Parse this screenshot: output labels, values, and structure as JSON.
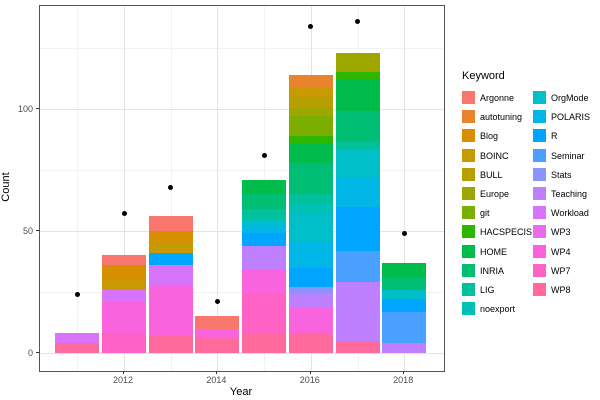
{
  "chart_data": {
    "type": "bar",
    "stacked": true,
    "xlabel": "Year",
    "ylabel": "Count",
    "legend_title": "Keyword",
    "x_ticks": [
      2012,
      2014,
      2016,
      2018
    ],
    "y_ticks": [
      0,
      50,
      100
    ],
    "y_minor_ticks": [
      25,
      75,
      125
    ],
    "x_minor_years": [
      2011,
      2013,
      2015,
      2017
    ],
    "ylim": [
      -7.4,
      142.2
    ],
    "xlim": [
      2010.2,
      2018.9
    ],
    "grid": true,
    "legend_position": "right",
    "keywords": [
      {
        "name": "Argonne",
        "color": "#F8766D"
      },
      {
        "name": "autotuning",
        "color": "#E8842E"
      },
      {
        "name": "Blog",
        "color": "#D78E00"
      },
      {
        "name": "BOINC",
        "color": "#C89900"
      },
      {
        "name": "BULL",
        "color": "#B5A000"
      },
      {
        "name": "Europe",
        "color": "#9DA700"
      },
      {
        "name": "git",
        "color": "#7CAE00"
      },
      {
        "name": "HACSPECIS",
        "color": "#2CB600"
      },
      {
        "name": "HOME",
        "color": "#00BC4B"
      },
      {
        "name": "INRIA",
        "color": "#00BF74"
      },
      {
        "name": "LIG",
        "color": "#00C19C"
      },
      {
        "name": "noexport",
        "color": "#00C1B3"
      },
      {
        "name": "OrgMode",
        "color": "#00BFC8"
      },
      {
        "name": "POLARIS",
        "color": "#00B7E8"
      },
      {
        "name": "R",
        "color": "#00A5FF"
      },
      {
        "name": "Seminar",
        "color": "#4AA0FF"
      },
      {
        "name": "Stats",
        "color": "#8B93FF"
      },
      {
        "name": "Teaching",
        "color": "#BF80FF"
      },
      {
        "name": "Workload",
        "color": "#D874FB"
      },
      {
        "name": "WP3",
        "color": "#E96BF0"
      },
      {
        "name": "WP4",
        "color": "#F963DE"
      },
      {
        "name": "WP7",
        "color": "#FF61C5"
      },
      {
        "name": "WP8",
        "color": "#FF699C"
      }
    ],
    "bars": [
      {
        "year": 2011,
        "total": 8,
        "segments": [
          {
            "keyword": "WP8",
            "value": 4
          },
          {
            "keyword": "Workload",
            "value": 4
          }
        ]
      },
      {
        "year": 2012,
        "total": 40,
        "segments": [
          {
            "keyword": "WP7",
            "value": 8
          },
          {
            "keyword": "WP4",
            "value": 13
          },
          {
            "keyword": "Workload",
            "value": 5
          },
          {
            "keyword": "BOINC",
            "value": 4
          },
          {
            "keyword": "Blog",
            "value": 6
          },
          {
            "keyword": "Argonne",
            "value": 4
          }
        ]
      },
      {
        "year": 2013,
        "total": 56,
        "segments": [
          {
            "keyword": "WP8",
            "value": 7
          },
          {
            "keyword": "WP4",
            "value": 21
          },
          {
            "keyword": "Workload",
            "value": 8
          },
          {
            "keyword": "R",
            "value": 5
          },
          {
            "keyword": "BOINC",
            "value": 5
          },
          {
            "keyword": "Blog",
            "value": 4
          },
          {
            "keyword": "Argonne",
            "value": 6
          }
        ]
      },
      {
        "year": 2014,
        "total": 15,
        "segments": [
          {
            "keyword": "WP8",
            "value": 6
          },
          {
            "keyword": "WP4",
            "value": 4
          },
          {
            "keyword": "Argonne",
            "value": 5
          }
        ]
      },
      {
        "year": 2015,
        "total": 71,
        "segments": [
          {
            "keyword": "WP8",
            "value": 8
          },
          {
            "keyword": "WP7",
            "value": 16
          },
          {
            "keyword": "WP4",
            "value": 10
          },
          {
            "keyword": "Teaching",
            "value": 10
          },
          {
            "keyword": "R",
            "value": 5
          },
          {
            "keyword": "POLARIS",
            "value": 3
          },
          {
            "keyword": "OrgMode",
            "value": 3
          },
          {
            "keyword": "LIG",
            "value": 4
          },
          {
            "keyword": "INRIA",
            "value": 6
          },
          {
            "keyword": "HOME",
            "value": 6
          }
        ]
      },
      {
        "year": 2016,
        "total": 114,
        "segments": [
          {
            "keyword": "WP8",
            "value": 8
          },
          {
            "keyword": "WP4",
            "value": 11
          },
          {
            "keyword": "Teaching",
            "value": 5
          },
          {
            "keyword": "Stats",
            "value": 3
          },
          {
            "keyword": "R",
            "value": 8
          },
          {
            "keyword": "POLARIS",
            "value": 11
          },
          {
            "keyword": "OrgMode",
            "value": 11
          },
          {
            "keyword": "noexport",
            "value": 4
          },
          {
            "keyword": "LIG",
            "value": 4
          },
          {
            "keyword": "INRIA",
            "value": 13
          },
          {
            "keyword": "HOME",
            "value": 8
          },
          {
            "keyword": "HACSPECIS",
            "value": 3
          },
          {
            "keyword": "git",
            "value": 8
          },
          {
            "keyword": "Europe",
            "value": 4
          },
          {
            "keyword": "BULL",
            "value": 4
          },
          {
            "keyword": "BOINC",
            "value": 4
          },
          {
            "keyword": "autotuning",
            "value": 5
          }
        ]
      },
      {
        "year": 2017,
        "total": 123,
        "segments": [
          {
            "keyword": "WP8",
            "value": 5
          },
          {
            "keyword": "Teaching",
            "value": 24
          },
          {
            "keyword": "Seminar",
            "value": 13
          },
          {
            "keyword": "R",
            "value": 18
          },
          {
            "keyword": "POLARIS",
            "value": 12
          },
          {
            "keyword": "OrgMode",
            "value": 11
          },
          {
            "keyword": "LIG",
            "value": 4
          },
          {
            "keyword": "INRIA",
            "value": 12
          },
          {
            "keyword": "HOME",
            "value": 13
          },
          {
            "keyword": "HACSPECIS",
            "value": 3
          },
          {
            "keyword": "Europe",
            "value": 8
          }
        ]
      },
      {
        "year": 2018,
        "total": 37,
        "segments": [
          {
            "keyword": "Teaching",
            "value": 4
          },
          {
            "keyword": "Seminar",
            "value": 13
          },
          {
            "keyword": "R",
            "value": 5
          },
          {
            "keyword": "OrgMode",
            "value": 4
          },
          {
            "keyword": "INRIA",
            "value": 5
          },
          {
            "keyword": "HOME",
            "value": 6
          }
        ]
      }
    ],
    "points": [
      {
        "year": 2011,
        "count": 24
      },
      {
        "year": 2012,
        "count": 57
      },
      {
        "year": 2013,
        "count": 68
      },
      {
        "year": 2014,
        "count": 21
      },
      {
        "year": 2015,
        "count": 81
      },
      {
        "year": 2016,
        "count": 134
      },
      {
        "year": 2017,
        "count": 136
      },
      {
        "year": 2018,
        "count": 49
      }
    ]
  }
}
